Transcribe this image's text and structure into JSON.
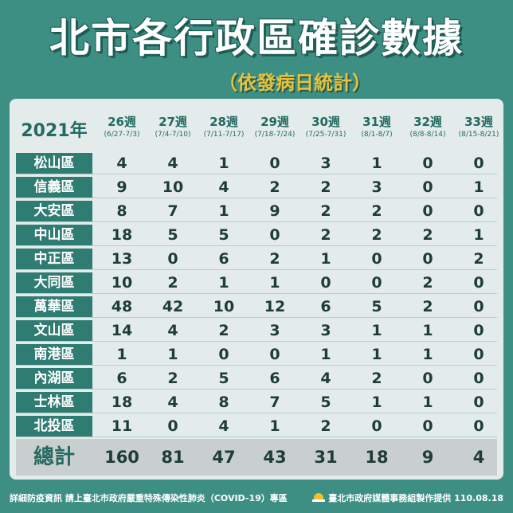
{
  "title": "北市各行政區確診數據",
  "subtitle": "（依發病日統計）",
  "table": {
    "year_label": "2021年",
    "weeks": [
      {
        "label": "26週",
        "range": "(6/27-7/3)"
      },
      {
        "label": "27週",
        "range": "(7/4-7/10)"
      },
      {
        "label": "28週",
        "range": "(7/11-7/17)"
      },
      {
        "label": "29週",
        "range": "(7/18-7/24)"
      },
      {
        "label": "30週",
        "range": "(7/25-7/31)"
      },
      {
        "label": "31週",
        "range": "(8/1-8/7)"
      },
      {
        "label": "32週",
        "range": "(8/8-8/14)"
      },
      {
        "label": "33週",
        "range": "(8/15-8/21)"
      }
    ],
    "rows": [
      {
        "district": "松山區",
        "values": [
          "4",
          "4",
          "1",
          "0",
          "3",
          "1",
          "0",
          "0"
        ]
      },
      {
        "district": "信義區",
        "values": [
          "9",
          "10",
          "4",
          "2",
          "2",
          "3",
          "0",
          "1"
        ]
      },
      {
        "district": "大安區",
        "values": [
          "8",
          "7",
          "1",
          "9",
          "2",
          "2",
          "0",
          "0"
        ]
      },
      {
        "district": "中山區",
        "values": [
          "18",
          "5",
          "5",
          "0",
          "2",
          "2",
          "2",
          "1"
        ]
      },
      {
        "district": "中正區",
        "values": [
          "13",
          "0",
          "6",
          "2",
          "1",
          "0",
          "0",
          "2"
        ]
      },
      {
        "district": "大同區",
        "values": [
          "10",
          "2",
          "1",
          "1",
          "0",
          "0",
          "2",
          "0"
        ]
      },
      {
        "district": "萬華區",
        "values": [
          "48",
          "42",
          "10",
          "12",
          "6",
          "5",
          "2",
          "0"
        ]
      },
      {
        "district": "文山區",
        "values": [
          "14",
          "4",
          "2",
          "3",
          "3",
          "1",
          "1",
          "0"
        ]
      },
      {
        "district": "南港區",
        "values": [
          "1",
          "1",
          "0",
          "0",
          "1",
          "1",
          "1",
          "0"
        ]
      },
      {
        "district": "內湖區",
        "values": [
          "6",
          "2",
          "5",
          "6",
          "4",
          "2",
          "0",
          "0"
        ]
      },
      {
        "district": "士林區",
        "values": [
          "18",
          "4",
          "8",
          "7",
          "5",
          "1",
          "1",
          "0"
        ]
      },
      {
        "district": "北投區",
        "values": [
          "11",
          "0",
          "4",
          "1",
          "2",
          "0",
          "0",
          "0"
        ]
      }
    ],
    "total_label": "總計",
    "totals": [
      "160",
      "81",
      "47",
      "43",
      "31",
      "18",
      "9",
      "4"
    ]
  },
  "footer": {
    "info": "詳細防疫資訊 請上臺北市政府嚴重特殊傳染性肺炎（COVID-19）專區",
    "credit": "臺北市政府媒體事務組製作提供 110.08.18",
    "logo_icon": "taipei-gov-logo-icon"
  },
  "colors": {
    "background": "#3d8f84",
    "district_cell": "#2f7c72",
    "subtitle": "#e9c13a"
  }
}
